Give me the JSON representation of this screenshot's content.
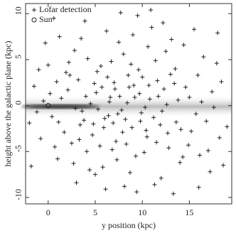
{
  "chart_data": {
    "type": "scatter",
    "xlabel": "y position (kpc)",
    "ylabel": "height above the galactic plane (kpc)",
    "xlim": [
      -2.4,
      19.5
    ],
    "ylim": [
      -10.7,
      11.1
    ],
    "xticks": [
      0,
      5,
      10,
      15
    ],
    "yticks": [
      -10,
      -5,
      0,
      5,
      10
    ],
    "legend": "upper left",
    "series": [
      {
        "name": "Lofar detection",
        "marker": "plus",
        "color": "#222222",
        "x": [
          1.2,
          3.4,
          5.6,
          7.8,
          9.1,
          10.5,
          12.3,
          14.0,
          6.2,
          8.7,
          -1.5,
          0.4,
          2.3,
          4.1,
          6.6,
          8.0,
          11.2,
          13.5,
          15.2,
          17.4,
          9.5,
          3.0,
          7.2,
          10.0,
          12.8,
          5.1,
          6.9,
          8.4,
          9.9,
          11.6,
          2.8,
          4.7,
          7.5,
          9.3,
          13.1,
          16.0,
          18.2,
          1.0,
          0.0,
          -0.8,
          5.8,
          7.0,
          8.9,
          10.8,
          12.0,
          14.6,
          16.5,
          3.9,
          6.1,
          11.0,
          4.5,
          5.3,
          6.4,
          7.6,
          8.2,
          9.7,
          10.3,
          11.9,
          13.8,
          15.7,
          2.1,
          3.6,
          1.7,
          0.9,
          -1.2,
          17.9,
          18.6,
          16.8,
          14.9,
          13.3,
          12.5,
          10.6,
          9.0,
          8.1,
          7.3,
          6.7,
          5.5,
          4.2,
          3.2,
          2.5,
          1.4,
          0.6,
          -0.3,
          -1.8,
          19.0,
          18.0,
          17.0,
          15.5,
          14.3,
          13.0,
          12.1,
          11.4,
          10.2,
          9.6,
          8.6,
          7.9,
          6.3,
          5.9,
          4.9,
          3.8,
          10.9,
          7.7,
          5.0,
          9.4,
          12.7,
          11.7,
          8.8,
          6.8,
          4.4,
          2.7,
          15.9,
          16.3,
          17.6,
          14.4,
          13.6,
          12.2,
          11.3,
          10.4,
          9.2,
          8.3,
          7.1,
          6.0,
          5.2,
          4.0,
          3.3,
          2.2,
          1.1,
          0.2,
          -1.0,
          -2.0,
          18.4,
          17.2,
          16.1,
          15.0,
          14.1,
          13.4,
          12.6,
          11.5,
          10.7,
          9.8,
          8.5,
          7.4,
          6.5,
          5.7,
          4.8,
          3.5,
          2.9,
          1.9,
          0.7,
          -0.5
        ],
        "y": [
          7.5,
          -2.1,
          4.3,
          -0.5,
          2.2,
          -3.4,
          1.8,
          -6.2,
          8.1,
          -7.3,
          2.1,
          -1.2,
          3.3,
          -5.0,
          0.9,
          5.6,
          -1.3,
          4.0,
          -2.8,
          1.5,
          9.8,
          -8.4,
          -3.9,
          3.1,
          -4.6,
          1.4,
          -1.9,
          0.3,
          -0.8,
          2.7,
          6.0,
          -3.2,
          6.9,
          -5.5,
          7.2,
          -8.9,
          -3.5,
          -5.8,
          4.4,
          -3.6,
          -6.7,
          2.5,
          -2.4,
          0.7,
          -7.9,
          2.0,
          5.3,
          9.2,
          -9.1,
          8.5,
          0.2,
          -0.4,
          -1.1,
          1.0,
          -1.5,
          1.3,
          -0.2,
          -2.1,
          0.6,
          -0.9,
          1.7,
          -0.6,
          -2.9,
          2.6,
          -0.7,
          4.6,
          -6.5,
          -1.7,
          -4.3,
          -9.6,
          5.9,
          6.4,
          7.7,
          -8.8,
          -5.9,
          4.8,
          -4.4,
          5.1,
          2.8,
          -4.1,
          0.8,
          9.5,
          6.8,
          -6.6,
          -2.3,
          7.9,
          -4.9,
          8.3,
          -5.6,
          3.4,
          -0.6,
          4.9,
          -5.1,
          3.9,
          2.0,
          -2.9,
          3.1,
          -2.4,
          2.4,
          -1.6,
          10.4,
          10.1,
          -7.5,
          -9.4,
          -3.0,
          1.0,
          4.5,
          -4.8,
          -7.0,
          -6.3,
          3.3,
          0.4,
          -0.2,
          6.6,
          -1.8,
          9.0,
          -8.6,
          -2.7,
          0.9,
          -4.2,
          1.8,
          -1.4,
          3.7,
          1.0,
          -3.7,
          4.7,
          -1.8,
          1.3,
          3.9,
          -1.9,
          2.6,
          -7.2,
          -5.4,
          0.9,
          -2.6,
          2.4,
          0.1,
          -4.0,
          2.2,
          -1.7,
          3.3,
          -0.9,
          0.4,
          2.0,
          -2.0,
          7.3,
          -0.3,
          3.6,
          -4.5,
          0.5
        ]
      },
      {
        "name": "Sun",
        "marker": "circle",
        "color": "#222222",
        "x": [
          0
        ],
        "y": [
          0
        ]
      }
    ]
  }
}
